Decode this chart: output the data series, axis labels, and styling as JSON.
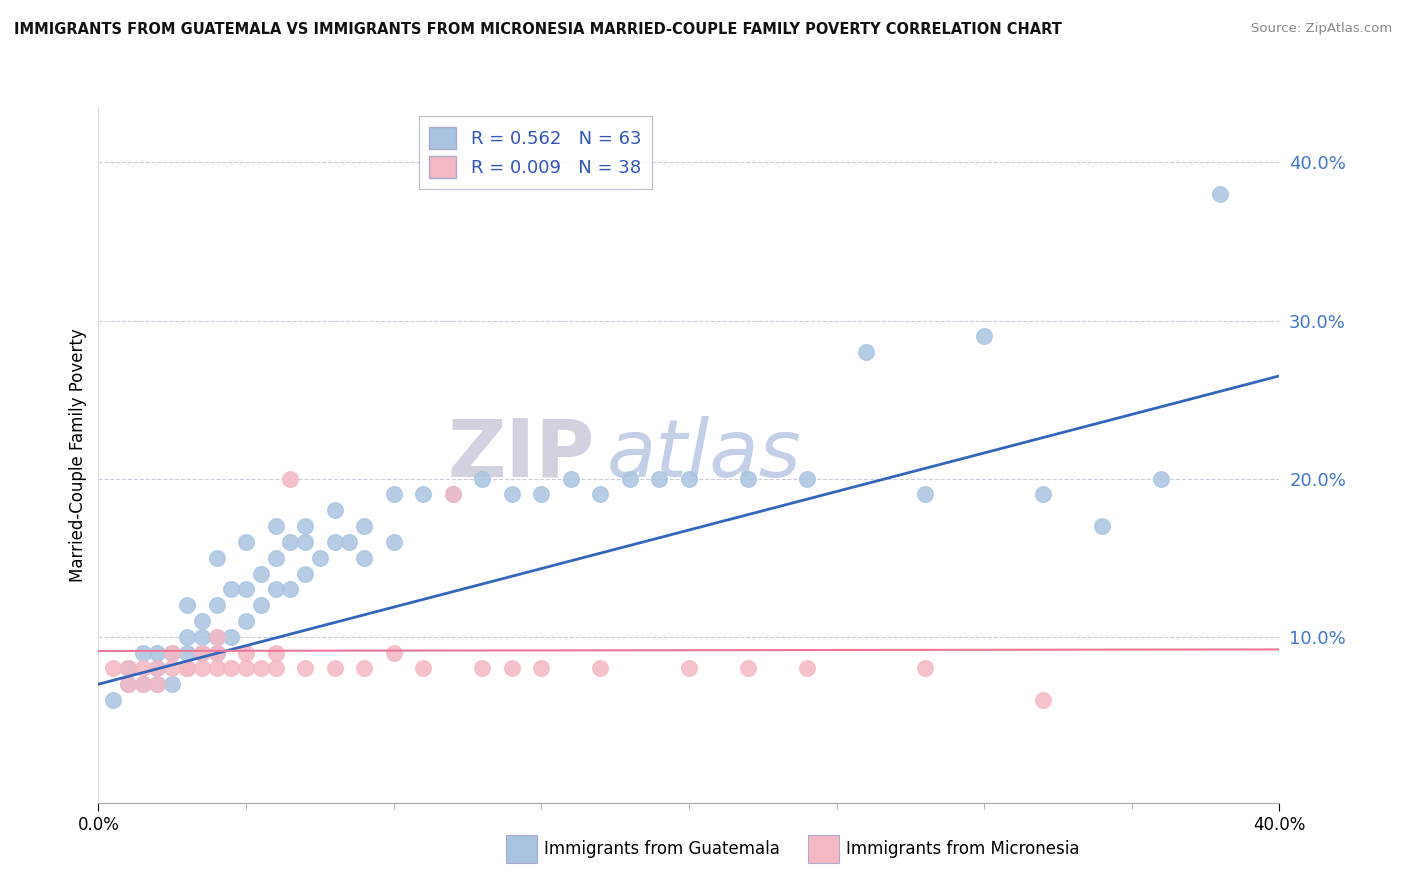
{
  "title": "IMMIGRANTS FROM GUATEMALA VS IMMIGRANTS FROM MICRONESIA MARRIED-COUPLE FAMILY POVERTY CORRELATION CHART",
  "source": "Source: ZipAtlas.com",
  "ylabel": "Married-Couple Family Poverty",
  "xlim": [
    0.0,
    0.4
  ],
  "ylim": [
    -0.005,
    0.435
  ],
  "yticks": [
    0.1,
    0.2,
    0.3,
    0.4
  ],
  "ytick_labels": [
    "10.0%",
    "20.0%",
    "30.0%",
    "40.0%"
  ],
  "xticks": [
    0.0,
    0.4
  ],
  "xtick_labels": [
    "0.0%",
    "40.0%"
  ],
  "legend_blue_r": "R = 0.562",
  "legend_blue_n": "N = 63",
  "legend_pink_r": "R = 0.009",
  "legend_pink_n": "N = 38",
  "blue_scatter_color": "#A8C4E0",
  "pink_scatter_color": "#F4B8C4",
  "blue_line_color": "#3366BB",
  "pink_line_color": "#EE7799",
  "legend_text_color": "#3355BB",
  "watermark_color": "#DDDDEE",
  "ytick_color": "#4477CC",
  "grid_color": "#CCCCDD",
  "blue_scatter_x": [
    0.005,
    0.01,
    0.01,
    0.015,
    0.015,
    0.02,
    0.02,
    0.02,
    0.025,
    0.025,
    0.03,
    0.03,
    0.03,
    0.03,
    0.035,
    0.035,
    0.035,
    0.04,
    0.04,
    0.04,
    0.04,
    0.045,
    0.045,
    0.05,
    0.05,
    0.05,
    0.055,
    0.055,
    0.06,
    0.06,
    0.06,
    0.065,
    0.065,
    0.07,
    0.07,
    0.07,
    0.075,
    0.08,
    0.08,
    0.085,
    0.09,
    0.09,
    0.1,
    0.1,
    0.11,
    0.12,
    0.13,
    0.14,
    0.15,
    0.16,
    0.17,
    0.18,
    0.19,
    0.2,
    0.22,
    0.24,
    0.26,
    0.28,
    0.3,
    0.32,
    0.34,
    0.36,
    0.38
  ],
  "blue_scatter_y": [
    0.06,
    0.07,
    0.08,
    0.07,
    0.09,
    0.07,
    0.08,
    0.09,
    0.07,
    0.09,
    0.08,
    0.09,
    0.1,
    0.12,
    0.09,
    0.1,
    0.11,
    0.09,
    0.1,
    0.12,
    0.15,
    0.1,
    0.13,
    0.11,
    0.13,
    0.16,
    0.12,
    0.14,
    0.13,
    0.15,
    0.17,
    0.13,
    0.16,
    0.14,
    0.16,
    0.17,
    0.15,
    0.16,
    0.18,
    0.16,
    0.15,
    0.17,
    0.16,
    0.19,
    0.19,
    0.19,
    0.2,
    0.19,
    0.19,
    0.2,
    0.19,
    0.2,
    0.2,
    0.2,
    0.2,
    0.2,
    0.28,
    0.19,
    0.29,
    0.19,
    0.17,
    0.2,
    0.38
  ],
  "pink_scatter_x": [
    0.005,
    0.01,
    0.01,
    0.015,
    0.015,
    0.02,
    0.02,
    0.025,
    0.025,
    0.03,
    0.03,
    0.035,
    0.035,
    0.04,
    0.04,
    0.04,
    0.045,
    0.05,
    0.05,
    0.055,
    0.06,
    0.06,
    0.065,
    0.07,
    0.08,
    0.09,
    0.1,
    0.11,
    0.12,
    0.13,
    0.14,
    0.15,
    0.17,
    0.2,
    0.22,
    0.24,
    0.28,
    0.32
  ],
  "pink_scatter_y": [
    0.08,
    0.07,
    0.08,
    0.08,
    0.07,
    0.07,
    0.08,
    0.08,
    0.09,
    0.08,
    0.08,
    0.09,
    0.08,
    0.08,
    0.09,
    0.1,
    0.08,
    0.08,
    0.09,
    0.08,
    0.08,
    0.09,
    0.2,
    0.08,
    0.08,
    0.08,
    0.09,
    0.08,
    0.19,
    0.08,
    0.08,
    0.08,
    0.08,
    0.08,
    0.08,
    0.08,
    0.08,
    0.06
  ],
  "blue_line_x0": 0.0,
  "blue_line_y0": 0.07,
  "blue_line_x1": 0.4,
  "blue_line_y1": 0.265,
  "pink_line_x0": 0.0,
  "pink_line_y0": 0.091,
  "pink_line_x1": 0.4,
  "pink_line_y1": 0.092
}
